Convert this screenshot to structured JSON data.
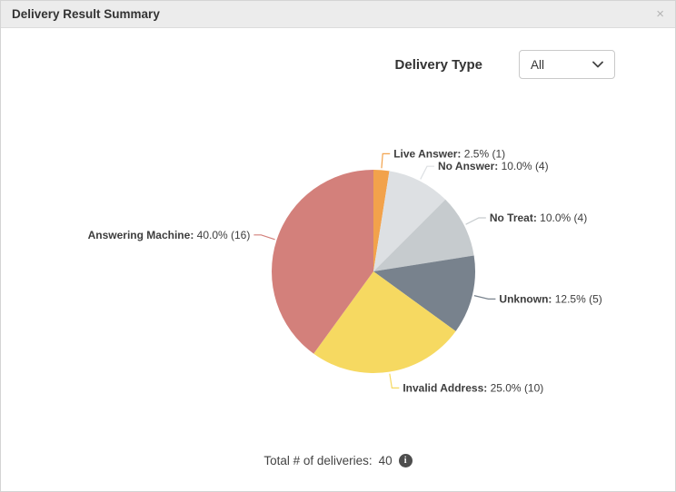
{
  "header": {
    "title": "Delivery Result Summary"
  },
  "icons": {
    "close": "×",
    "info": "i"
  },
  "controls": {
    "delivery_type_label": "Delivery Type",
    "delivery_type_value": "All"
  },
  "chart_data": {
    "type": "pie",
    "title": "Delivery Result Summary",
    "start_angle_deg": -90,
    "direction": "clockwise",
    "total": 40,
    "legend_position": "outside-labels-with-leader-lines",
    "slices": [
      {
        "id": "live-answer",
        "label": "Live Answer",
        "pct": "2.5%",
        "value": 1,
        "color": "#F2A24B"
      },
      {
        "id": "no-answer",
        "label": "No Answer",
        "pct": "10.0%",
        "value": 4,
        "color": "#DDE0E3"
      },
      {
        "id": "no-treat",
        "label": "No Treat",
        "pct": "10.0%",
        "value": 4,
        "color": "#C6CBCE"
      },
      {
        "id": "unknown",
        "label": "Unknown",
        "pct": "12.5%",
        "value": 5,
        "color": "#78828D"
      },
      {
        "id": "invalid-address",
        "label": "Invalid Address",
        "pct": "25.0%",
        "value": 10,
        "color": "#F6D961"
      },
      {
        "id": "answering-machine",
        "label": "Answering Machine",
        "pct": "40.0%",
        "value": 16,
        "color": "#D3807B"
      }
    ]
  },
  "footer": {
    "total_label": "Total # of deliveries:",
    "total_value": "40"
  }
}
